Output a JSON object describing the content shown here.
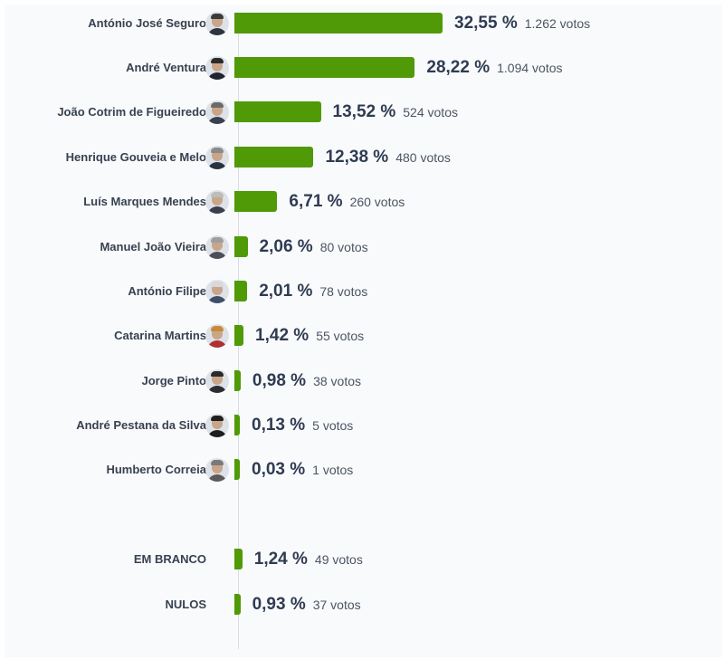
{
  "chart_data": {
    "type": "bar",
    "orientation": "horizontal",
    "vote_unit": "votos",
    "xlim": [
      0,
      32.55
    ],
    "categories": [
      "António José Seguro",
      "André Ventura",
      "João Cotrim de Figueiredo",
      "Henrique Gouveia e Melo",
      "Luís Marques Mendes",
      "Manuel João Vieira",
      "António Filipe",
      "Catarina Martins",
      "Jorge Pinto",
      "André Pestana da Silva",
      "Humberto Correia",
      "EM BRANCO",
      "NULOS"
    ],
    "values": [
      32.55,
      28.22,
      13.52,
      12.38,
      6.71,
      2.06,
      2.01,
      1.42,
      0.98,
      0.13,
      0.03,
      1.24,
      0.93
    ],
    "value_labels": [
      "32,55 %",
      "28,22 %",
      "13,52 %",
      "12,38 %",
      "6,71 %",
      "2,06 %",
      "2,01 %",
      "1,42 %",
      "0,98 %",
      "0,13 %",
      "0,03 %",
      "1,24 %",
      "0,93 %"
    ],
    "votes": [
      1262,
      1094,
      524,
      480,
      260,
      80,
      78,
      55,
      38,
      5,
      1,
      49,
      37
    ],
    "vote_labels": [
      "1.262 votos",
      "1.094 votos",
      "524 votos",
      "480 votos",
      "260 votos",
      "80 votos",
      "78 votos",
      "55 votos",
      "38 votos",
      "5 votos",
      "1 votos",
      "49 votos",
      "37 votos"
    ],
    "has_photo": [
      true,
      true,
      true,
      true,
      true,
      true,
      true,
      true,
      true,
      true,
      true,
      false,
      false
    ],
    "bar_color": "#4f9a06",
    "grid": false,
    "legend": "none"
  }
}
